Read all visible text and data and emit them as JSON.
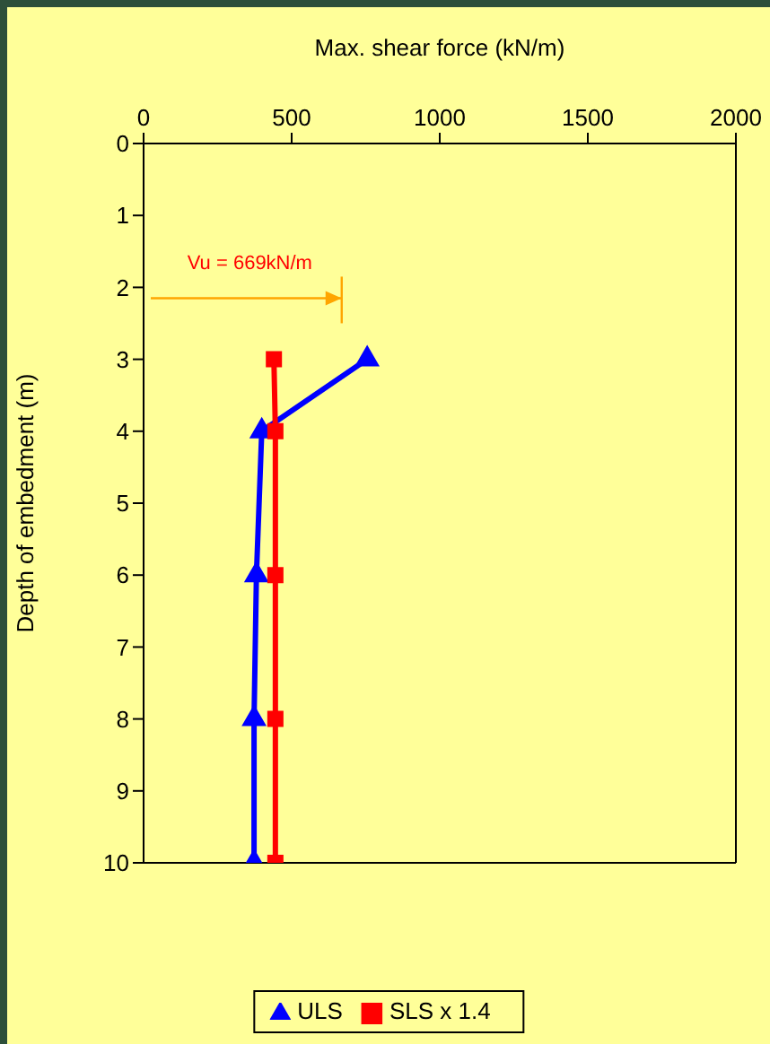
{
  "chart_data": {
    "type": "line",
    "xlabel": "Max. shear force (kN/m)",
    "ylabel": "Depth of embedment (m)",
    "xlim": [
      0,
      2000
    ],
    "xticks": [
      0,
      500,
      1000,
      1500,
      2000
    ],
    "ylim": [
      10,
      0
    ],
    "yticks": [
      0,
      1,
      2,
      3,
      4,
      5,
      6,
      7,
      8,
      9,
      10
    ],
    "series": [
      {
        "name": "ULS",
        "color": "#0000ff",
        "marker": "triangle",
        "x": [
          755,
          399,
          381,
          373,
          373
        ],
        "values": [
          3,
          4,
          6,
          8,
          10
        ]
      },
      {
        "name": "SLS x 1.4",
        "color": "#ff0000",
        "marker": "square",
        "x": [
          440,
          445,
          445,
          445,
          445
        ],
        "values": [
          3,
          4,
          6,
          8,
          10
        ]
      }
    ],
    "ref_lines": [
      {
        "axis": "x",
        "value": 669,
        "label": "Vu = 669kN/m",
        "color": "#ffa500"
      }
    ],
    "legend": "bottom",
    "line_style": "solid"
  }
}
